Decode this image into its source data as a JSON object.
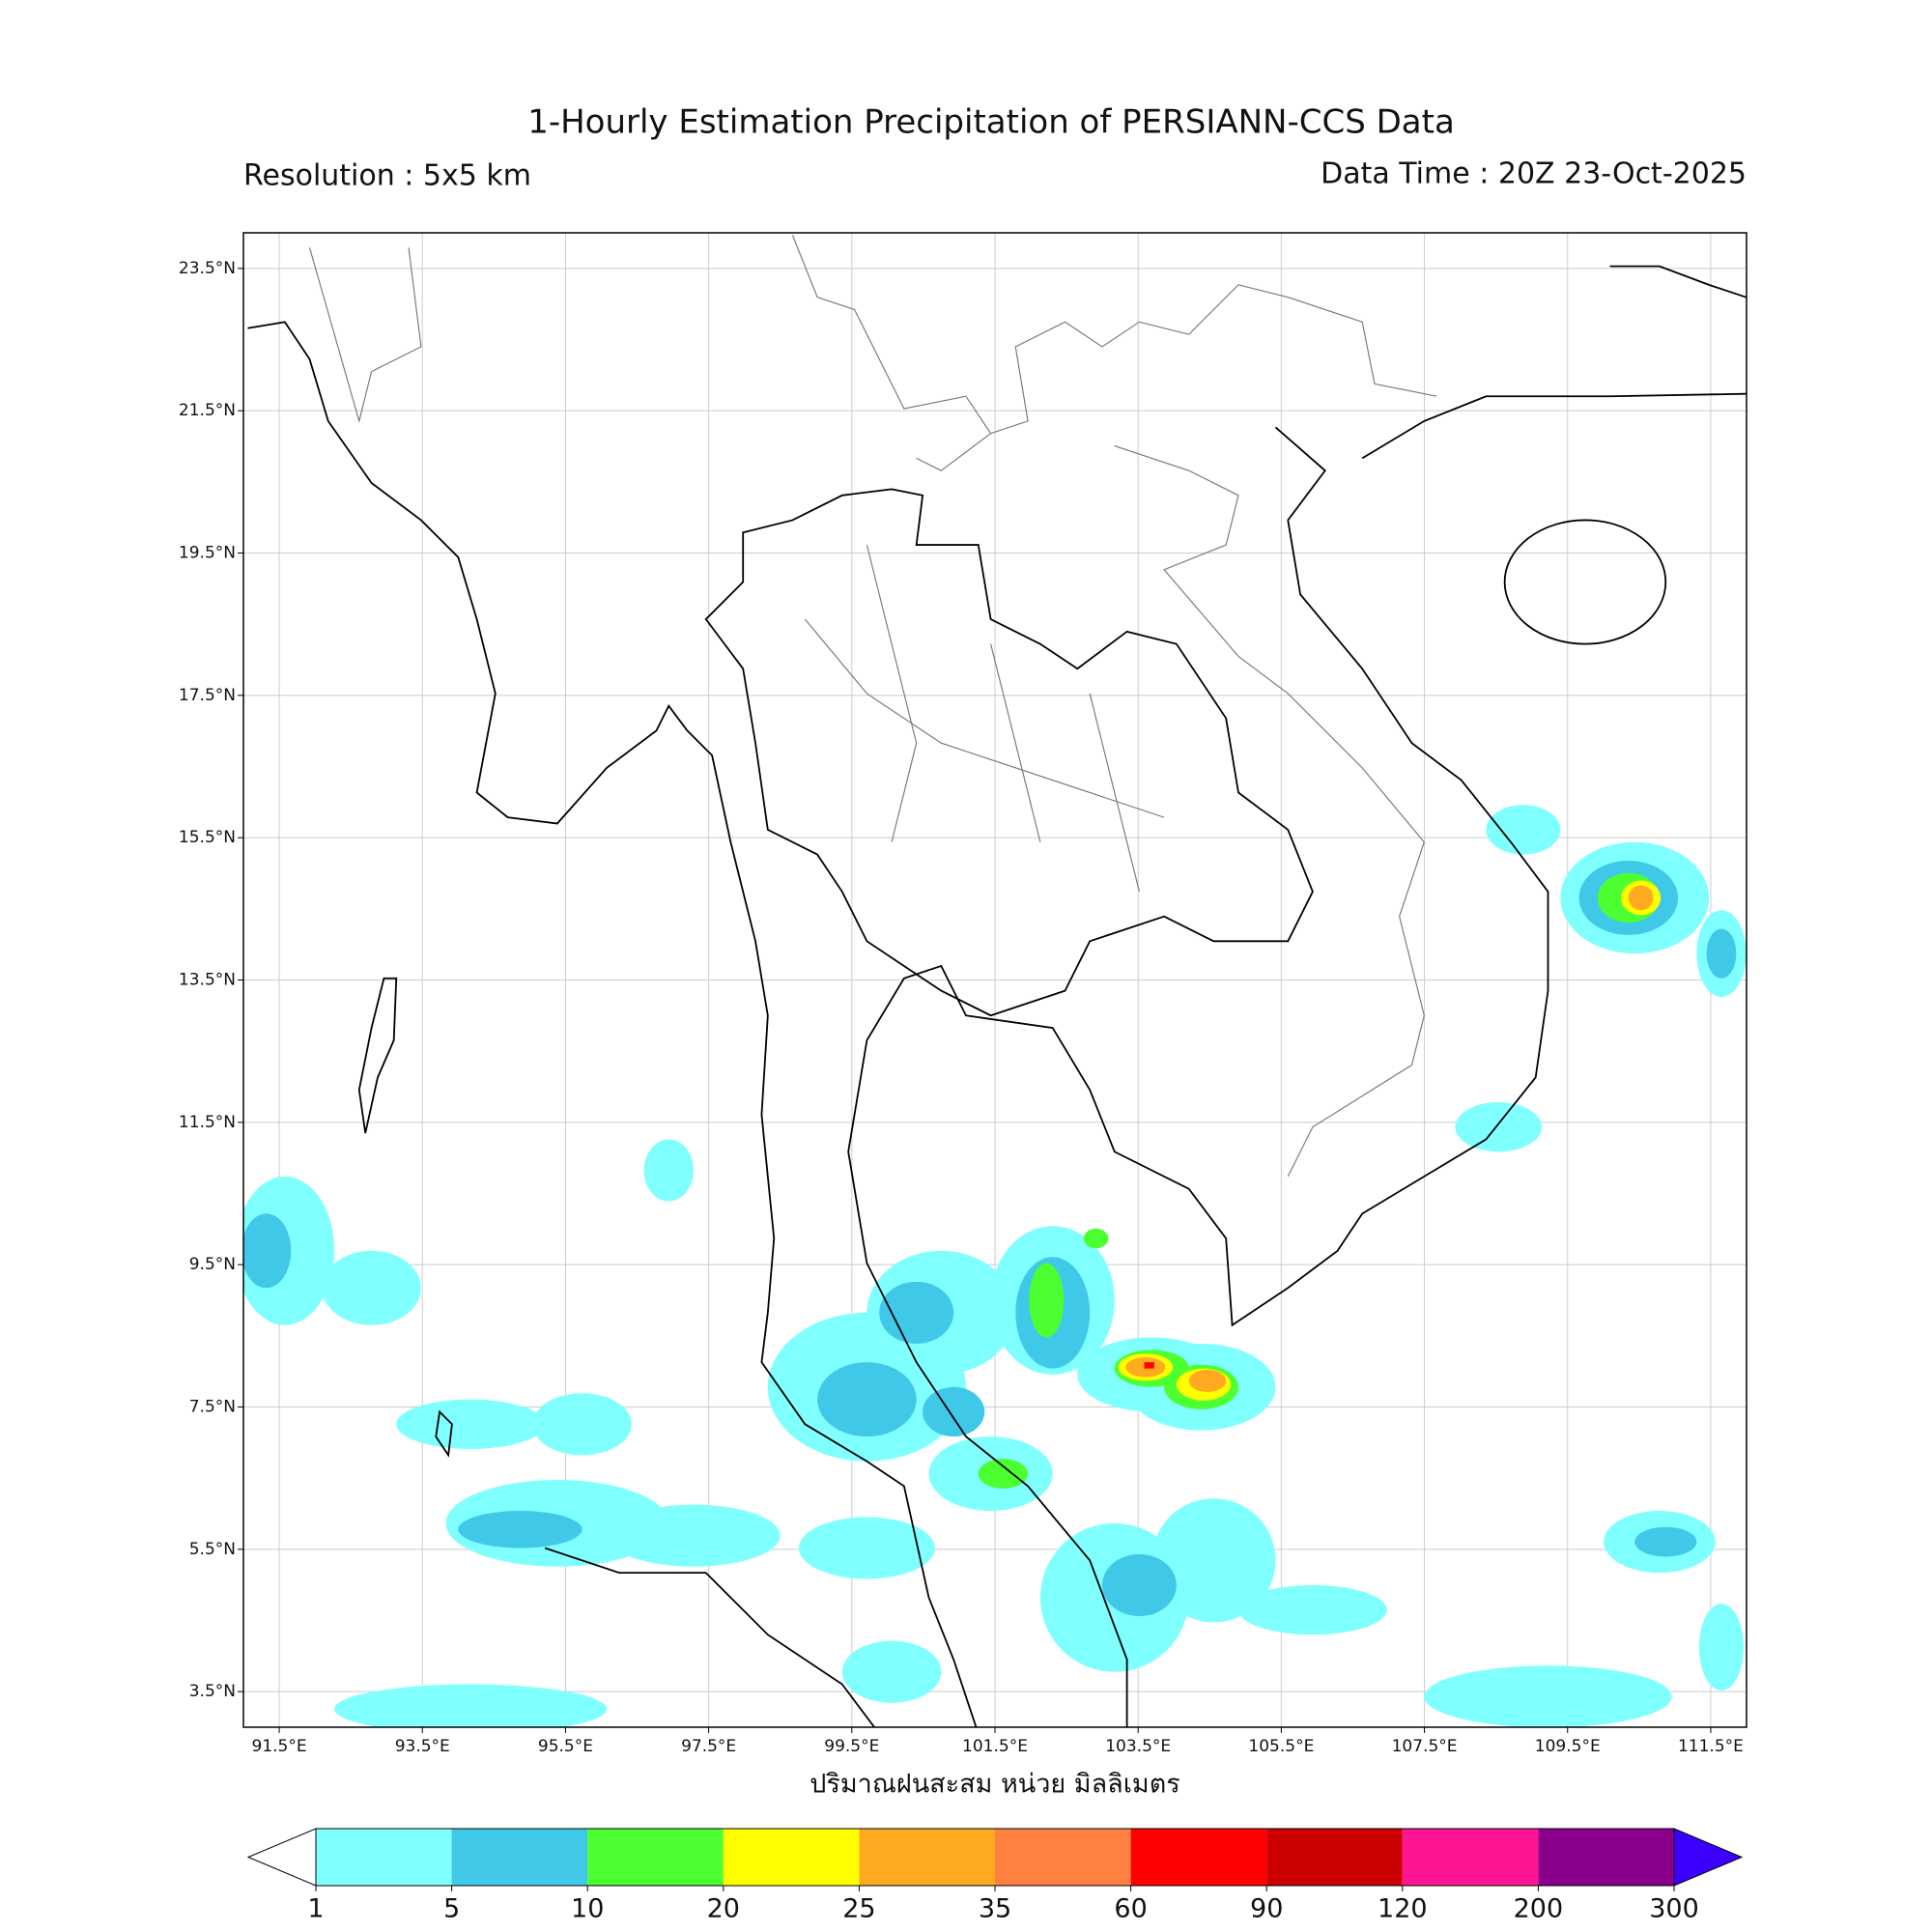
{
  "title": "1-Hourly Estimation Precipitation of PERSIANN-CCS Data",
  "resolution": "Resolution : 5x5 km",
  "data_time": "Data Time : 20Z 23-Oct-2025",
  "map": {
    "xlim": [
      91,
      112
    ],
    "ylim": [
      3,
      24
    ],
    "xticks": [
      {
        "value": 91.5,
        "label": "91.5°E"
      },
      {
        "value": 93.5,
        "label": "93.5°E"
      },
      {
        "value": 95.5,
        "label": "95.5°E"
      },
      {
        "value": 97.5,
        "label": "97.5°E"
      },
      {
        "value": 99.5,
        "label": "99.5°E"
      },
      {
        "value": 101.5,
        "label": "101.5°E"
      },
      {
        "value": 103.5,
        "label": "103.5°E"
      },
      {
        "value": 105.5,
        "label": "105.5°E"
      },
      {
        "value": 107.5,
        "label": "107.5°E"
      },
      {
        "value": 109.5,
        "label": "109.5°E"
      },
      {
        "value": 111.5,
        "label": "111.5°E"
      }
    ],
    "yticks": [
      {
        "value": 3.5,
        "label": "3.5°N"
      },
      {
        "value": 5.5,
        "label": "5.5°N"
      },
      {
        "value": 7.5,
        "label": "7.5°N"
      },
      {
        "value": 9.5,
        "label": "9.5°N"
      },
      {
        "value": 11.5,
        "label": "11.5°N"
      },
      {
        "value": 13.5,
        "label": "13.5°N"
      },
      {
        "value": 15.5,
        "label": "15.5°N"
      },
      {
        "value": 17.5,
        "label": "17.5°N"
      },
      {
        "value": 19.5,
        "label": "19.5°N"
      },
      {
        "value": 21.5,
        "label": "21.5°N"
      },
      {
        "value": 23.5,
        "label": "23.5°N"
      }
    ],
    "grid": true
  },
  "colorbar": {
    "label": "ปริมาณฝนสะสม หน่วย มิลลิเมตร",
    "levels": [
      1,
      5,
      10,
      20,
      25,
      35,
      60,
      90,
      120,
      200,
      300
    ],
    "colors": [
      "#80ffff",
      "#40c8e8",
      "#4cff30",
      "#ffff00",
      "#ffaa20",
      "#ff8040",
      "#ff0000",
      "#cc0000",
      "#ff1493",
      "#8b008b"
    ],
    "under_color": "#ffffff",
    "over_color": "#3b00ff"
  }
}
